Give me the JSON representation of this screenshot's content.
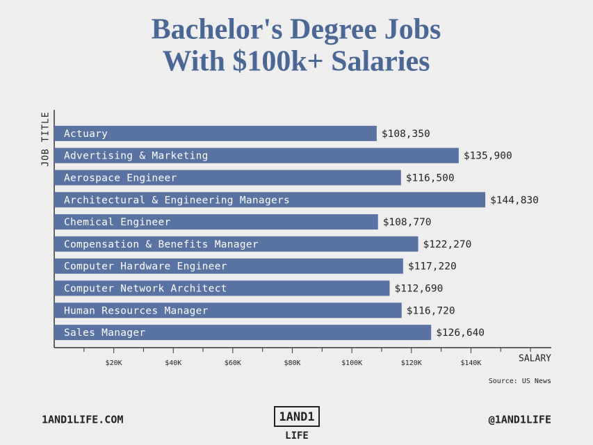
{
  "chart_data": {
    "type": "hbar",
    "title": [
      "Bachelor's Degree Jobs",
      "With $100k+ Salaries"
    ],
    "y_label": "JOB TITLE",
    "x_label": "SALARY",
    "source": "Source: US News",
    "categories": [
      "Actuary",
      "Advertising & Marketing",
      "Aerospace Engineer",
      "Architectural & Engineering Managers",
      "Chemical Engineer",
      "Compensation & Benefits Manager",
      "Computer Hardware Engineer",
      "Computer Network Architect",
      "Human Resources Manager",
      "Sales Manager"
    ],
    "values": [
      108350,
      135900,
      116500,
      144830,
      108770,
      122270,
      117220,
      112690,
      116720,
      126640
    ],
    "value_labels": [
      "$108,350",
      "$135,900",
      "$116,500",
      "$144,830",
      "$108,770",
      "$122,270",
      "$117,220",
      "$112,690",
      "$116,720",
      "$126,640"
    ],
    "color": "#5872a2",
    "xlim": [
      0,
      167000
    ],
    "xticks": [
      {
        "value": 20000,
        "label": "$20K"
      },
      {
        "value": 40000,
        "label": "$40K"
      },
      {
        "value": 60000,
        "label": "$60K"
      },
      {
        "value": 80000,
        "label": "$80K"
      },
      {
        "value": 100000,
        "label": "$100K"
      },
      {
        "value": 120000,
        "label": "$120K"
      },
      {
        "value": 140000,
        "label": "$140K"
      }
    ],
    "minor_xticks": [
      10000,
      30000,
      50000,
      70000,
      90000,
      110000,
      130000,
      150000,
      160000
    ]
  },
  "footer": {
    "website": "1AND1LIFE.COM",
    "handle": "@1AND1LIFE",
    "logo": [
      "1AND1",
      "LIFE"
    ]
  }
}
